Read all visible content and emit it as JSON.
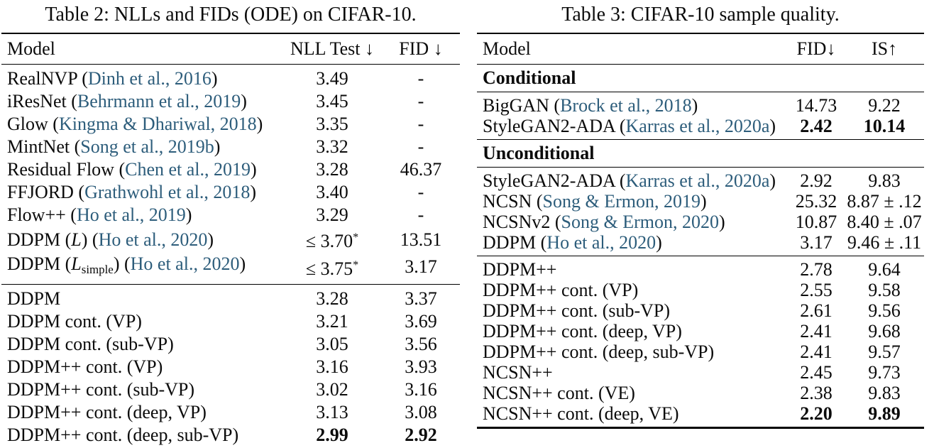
{
  "page": {
    "background": "#ffffff",
    "text_color": "#0b0b0b",
    "citation_color": "#2d5d7b"
  },
  "tables": [
    {
      "name": "table-2",
      "caption": "Table 2: NLLs and FIDs (ODE) on CIFAR-10.",
      "columns": [
        "Model",
        "NLL Test ↓",
        "FID ↓"
      ],
      "sections": [
        {
          "type": "rows",
          "rows": [
            {
              "model": [
                {
                  "t": "RealNVP ("
                },
                {
                  "t": "Dinh et al., 2016",
                  "s": "cite"
                },
                {
                  "t": ")"
                }
              ],
              "values": [
                "3.49",
                "-"
              ]
            },
            {
              "model": [
                {
                  "t": "iResNet ("
                },
                {
                  "t": "Behrmann et al., 2019",
                  "s": "cite"
                },
                {
                  "t": ")"
                }
              ],
              "values": [
                "3.45",
                "-"
              ]
            },
            {
              "model": [
                {
                  "t": "Glow ("
                },
                {
                  "t": "Kingma & Dhariwal, 2018",
                  "s": "cite"
                },
                {
                  "t": ")"
                }
              ],
              "values": [
                "3.35",
                "-"
              ]
            },
            {
              "model": [
                {
                  "t": "MintNet ("
                },
                {
                  "t": "Song et al., 2019b",
                  "s": "cite"
                },
                {
                  "t": ")"
                }
              ],
              "values": [
                "3.32",
                "-"
              ]
            },
            {
              "model": [
                {
                  "t": "Residual Flow ("
                },
                {
                  "t": "Chen et al., 2019",
                  "s": "cite"
                },
                {
                  "t": ")"
                }
              ],
              "values": [
                "3.28",
                "46.37"
              ]
            },
            {
              "model": [
                {
                  "t": "FFJORD ("
                },
                {
                  "t": "Grathwohl et al., 2018",
                  "s": "cite"
                },
                {
                  "t": ")"
                }
              ],
              "values": [
                "3.40",
                "-"
              ]
            },
            {
              "model": [
                {
                  "t": "Flow++ ("
                },
                {
                  "t": "Ho et al., 2019",
                  "s": "cite"
                },
                {
                  "t": ")"
                }
              ],
              "values": [
                "3.29",
                "-"
              ]
            },
            {
              "model": [
                {
                  "t": "DDPM ("
                },
                {
                  "t": "L",
                  "s": "i"
                },
                {
                  "t": ") ("
                },
                {
                  "t": "Ho et al., 2020",
                  "s": "cite"
                },
                {
                  "t": ")"
                }
              ],
              "values": [
                {
                  "segs": [
                    {
                      "t": "≤ 3.70"
                    },
                    {
                      "t": "*",
                      "s": "sup"
                    }
                  ]
                },
                "13.51"
              ]
            },
            {
              "model": [
                {
                  "t": "DDPM ("
                },
                {
                  "t": "L",
                  "s": "i"
                },
                {
                  "t": "simple",
                  "s": "sub"
                },
                {
                  "t": ") ("
                },
                {
                  "t": "Ho et al., 2020",
                  "s": "cite"
                },
                {
                  "t": ")"
                }
              ],
              "values": [
                {
                  "segs": [
                    {
                      "t": "≤ 3.75"
                    },
                    {
                      "t": "*",
                      "s": "sup"
                    }
                  ]
                },
                "3.17"
              ]
            }
          ]
        },
        {
          "type": "rows",
          "rows": [
            {
              "model": [
                {
                  "t": "DDPM"
                }
              ],
              "values": [
                "3.28",
                "3.37"
              ]
            },
            {
              "model": [
                {
                  "t": "DDPM cont. (VP)"
                }
              ],
              "values": [
                "3.21",
                "3.69"
              ]
            },
            {
              "model": [
                {
                  "t": "DDPM cont. (sub-VP)"
                }
              ],
              "values": [
                "3.05",
                "3.56"
              ]
            },
            {
              "model": [
                {
                  "t": "DDPM++ cont. (VP)"
                }
              ],
              "values": [
                "3.16",
                "3.93"
              ]
            },
            {
              "model": [
                {
                  "t": "DDPM++ cont. (sub-VP)"
                }
              ],
              "values": [
                "3.02",
                "3.16"
              ]
            },
            {
              "model": [
                {
                  "t": "DDPM++ cont. (deep, VP)"
                }
              ],
              "values": [
                "3.13",
                "3.08"
              ]
            },
            {
              "model": [
                {
                  "t": "DDPM++ cont. (deep, sub-VP)"
                }
              ],
              "values": [
                {
                  "t": "2.99",
                  "b": true
                },
                {
                  "t": "2.92",
                  "b": true
                }
              ]
            }
          ]
        }
      ]
    },
    {
      "name": "table-3",
      "caption": "Table 3: CIFAR-10 sample quality.",
      "columns": [
        "Model",
        "FID↓",
        "IS↑"
      ],
      "sections": [
        {
          "type": "label",
          "text": "Conditional"
        },
        {
          "type": "rows",
          "rows": [
            {
              "model": [
                {
                  "t": "BigGAN ("
                },
                {
                  "t": "Brock et al., 2018",
                  "s": "cite"
                },
                {
                  "t": ")"
                }
              ],
              "values": [
                "14.73",
                "9.22"
              ]
            },
            {
              "model": [
                {
                  "t": "StyleGAN2-ADA ("
                },
                {
                  "t": "Karras et al., 2020a",
                  "s": "cite"
                },
                {
                  "t": ")"
                }
              ],
              "values": [
                {
                  "t": "2.42",
                  "b": true
                },
                {
                  "t": "10.14",
                  "b": true
                }
              ]
            }
          ]
        },
        {
          "type": "label",
          "text": "Unconditional"
        },
        {
          "type": "rows",
          "rows": [
            {
              "model": [
                {
                  "t": "StyleGAN2-ADA ("
                },
                {
                  "t": "Karras et al., 2020a",
                  "s": "cite"
                },
                {
                  "t": ")"
                }
              ],
              "values": [
                "2.92",
                "9.83"
              ]
            },
            {
              "model": [
                {
                  "t": "NCSN ("
                },
                {
                  "t": "Song & Ermon, 2019",
                  "s": "cite"
                },
                {
                  "t": ")"
                }
              ],
              "values": [
                "25.32",
                "8.87 ± .12"
              ]
            },
            {
              "model": [
                {
                  "t": "NCSNv2 ("
                },
                {
                  "t": "Song & Ermon, 2020",
                  "s": "cite"
                },
                {
                  "t": ")"
                }
              ],
              "values": [
                "10.87",
                "8.40 ± .07"
              ]
            },
            {
              "model": [
                {
                  "t": "DDPM ("
                },
                {
                  "t": "Ho et al., 2020",
                  "s": "cite"
                },
                {
                  "t": ")"
                }
              ],
              "values": [
                "3.17",
                "9.46 ± .11"
              ]
            }
          ]
        },
        {
          "type": "rows",
          "rows": [
            {
              "model": [
                {
                  "t": "DDPM++"
                }
              ],
              "values": [
                "2.78",
                "9.64"
              ]
            },
            {
              "model": [
                {
                  "t": "DDPM++ cont. (VP)"
                }
              ],
              "values": [
                "2.55",
                "9.58"
              ]
            },
            {
              "model": [
                {
                  "t": "DDPM++ cont. (sub-VP)"
                }
              ],
              "values": [
                "2.61",
                "9.56"
              ]
            },
            {
              "model": [
                {
                  "t": "DDPM++ cont. (deep, VP)"
                }
              ],
              "values": [
                "2.41",
                "9.68"
              ]
            },
            {
              "model": [
                {
                  "t": "DDPM++ cont. (deep, sub-VP)"
                }
              ],
              "values": [
                "2.41",
                "9.57"
              ]
            },
            {
              "model": [
                {
                  "t": "NCSN++"
                }
              ],
              "values": [
                "2.45",
                "9.73"
              ]
            },
            {
              "model": [
                {
                  "t": "NCSN++ cont. (VE)"
                }
              ],
              "values": [
                "2.38",
                "9.83"
              ]
            },
            {
              "model": [
                {
                  "t": "NCSN++ cont. (deep, VE)"
                }
              ],
              "values": [
                {
                  "t": "2.20",
                  "b": true
                },
                {
                  "t": "9.89",
                  "b": true
                }
              ]
            }
          ]
        }
      ]
    }
  ]
}
